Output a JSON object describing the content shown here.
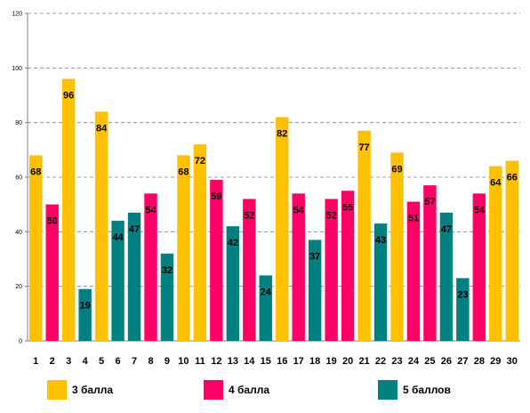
{
  "chart_data": {
    "type": "bar",
    "categories": [
      "1",
      "2",
      "3",
      "4",
      "5",
      "6",
      "7",
      "8",
      "9",
      "10",
      "11",
      "12",
      "13",
      "14",
      "15",
      "16",
      "17",
      "18",
      "19",
      "20",
      "21",
      "22",
      "23",
      "24",
      "25",
      "26",
      "27",
      "28",
      "29",
      "30"
    ],
    "values": [
      68,
      50,
      96,
      19,
      84,
      44,
      47,
      54,
      32,
      68,
      72,
      59,
      42,
      52,
      24,
      82,
      54,
      37,
      52,
      55,
      77,
      43,
      69,
      51,
      57,
      47,
      23,
      54,
      64,
      66
    ],
    "groups": [
      "3",
      "4",
      "3",
      "5",
      "3",
      "5",
      "5",
      "4",
      "5",
      "3",
      "3",
      "4",
      "5",
      "4",
      "5",
      "3",
      "4",
      "5",
      "4",
      "4",
      "3",
      "5",
      "3",
      "4",
      "4",
      "5",
      "5",
      "4",
      "3",
      "3"
    ],
    "legend": [
      {
        "key": "3",
        "name": "3 балла",
        "color": "#FFC000"
      },
      {
        "key": "4",
        "name": "4 балла",
        "color": "#FF0066"
      },
      {
        "key": "5",
        "name": "5 баллов",
        "color": "#008080"
      }
    ],
    "ylim": [
      0,
      120
    ],
    "yticks": [
      0,
      20,
      40,
      60,
      80,
      100,
      120
    ],
    "grid": true,
    "legend_position": "bottom"
  }
}
